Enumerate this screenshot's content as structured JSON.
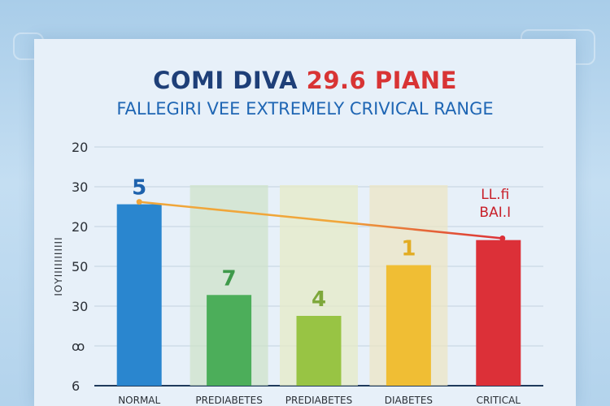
{
  "chart_data": {
    "type": "bar",
    "title_part1": "COMI DIVA",
    "title_part2": "29.6 PIANE",
    "subtitle": "FALLEGIRI VEE EXTREMELY CRIVICAL RANGE",
    "ylabel": "ΙΟΥΙΙΙΙΙΙΙΙΙΙΙ",
    "y_ticks": [
      "20",
      "30",
      "20",
      "50",
      "30",
      "ꝏ",
      "6"
    ],
    "categories": [
      "NORMAL",
      "PREDIABETES",
      "PREDIABETES",
      "DIABETES",
      "CRITICAL"
    ],
    "values": [
      30.4,
      15.2,
      11.7,
      20.2,
      24.4
    ],
    "value_labels": [
      "5",
      "7",
      "4",
      "1",
      ""
    ],
    "trend_line": [
      30.8,
      24.7
    ],
    "annotation": [
      "LL.fi",
      "BAI.I"
    ],
    "ylim": [
      0,
      40
    ],
    "colors": {
      "bars": [
        "#2a86cf",
        "#4cae5a",
        "#98c444",
        "#f0be34",
        "#dc3038"
      ],
      "labels": [
        "#1e62ad",
        "#3f9a4b",
        "#7ea83a",
        "#e2ac23",
        "#c8202a"
      ],
      "shade": [
        "#cfe3c9",
        "#e6ebc5",
        "#ece6c4"
      ],
      "trend_start": "#f0a63a",
      "trend_end": "#dc3038"
    },
    "grid": true
  }
}
